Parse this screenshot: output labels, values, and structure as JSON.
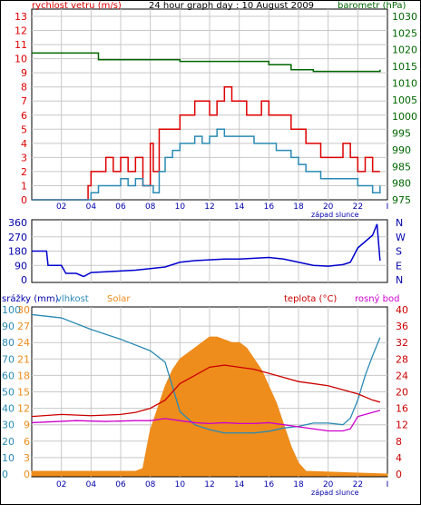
{
  "chart_data": [
    {
      "type": "line",
      "title": "24 hour graph day : 10 August 2009",
      "ylabel_left": "rychlost vetru (m/s)",
      "ylabel_right": "barometr (hPa)",
      "x_ticks": [
        "02",
        "04",
        "06",
        "08",
        "10",
        "12",
        "14",
        "16",
        "18",
        "20",
        "22",
        "I"
      ],
      "x_annotation": "západ slunce",
      "y_left_ticks": [
        0,
        1,
        2,
        3,
        4,
        5,
        6,
        7,
        8,
        9,
        10,
        11,
        12,
        13
      ],
      "y_left_range": [
        0,
        13
      ],
      "y_right_ticks": [
        975,
        980,
        985,
        990,
        995,
        1000,
        1005,
        1010,
        1015,
        1020,
        1025,
        1030
      ],
      "y_right_range": [
        975,
        1030
      ],
      "series": [
        {
          "name": "gust",
          "color": "#dd0000",
          "axis": "left",
          "hours": [
            0,
            1,
            2,
            3,
            3.8,
            4,
            4.5,
            5,
            5.5,
            6,
            6.5,
            7,
            7.5,
            8,
            8.2,
            8.6,
            9,
            9.5,
            10,
            10.5,
            11,
            11.5,
            12,
            12.5,
            13,
            13.5,
            14,
            14.5,
            15,
            15.5,
            16,
            16.5,
            17,
            17.5,
            18,
            18.5,
            19,
            19.5,
            20,
            20.5,
            21,
            21.5,
            22,
            22.5,
            23,
            23.5
          ],
          "values": [
            0,
            0,
            0,
            0,
            1,
            2,
            2,
            3,
            2,
            3,
            2,
            3,
            1,
            4,
            2,
            5,
            5,
            5,
            6,
            6,
            7,
            7,
            6,
            7,
            8,
            7,
            7,
            6,
            6,
            7,
            6,
            6,
            6,
            5,
            5,
            4,
            4,
            3,
            3,
            3,
            4,
            3,
            2,
            3,
            2,
            2
          ]
        },
        {
          "name": "average",
          "color": "#2a8ab4",
          "axis": "left",
          "hours": [
            0,
            1,
            2,
            3,
            3.8,
            4,
            4.5,
            5,
            5.5,
            6,
            6.5,
            7,
            7.5,
            8,
            8.2,
            8.6,
            9,
            9.5,
            10,
            10.5,
            11,
            11.5,
            12,
            12.5,
            13,
            13.5,
            14,
            14.5,
            15,
            15.5,
            16,
            16.5,
            17,
            17.5,
            18,
            18.5,
            19,
            19.5,
            20,
            20.5,
            21,
            21.5,
            22,
            22.5,
            23,
            23.5
          ],
          "values": [
            0,
            0,
            0,
            0,
            0,
            0.5,
            1,
            1,
            1,
            1.5,
            1,
            1.5,
            1,
            1,
            0.5,
            2,
            3,
            3.5,
            4,
            4,
            4.5,
            4,
            4.5,
            5,
            4.5,
            4.5,
            4.5,
            4.5,
            4,
            4,
            4,
            3.5,
            3.5,
            3,
            2.5,
            2,
            2,
            1.5,
            1.5,
            1.5,
            1.5,
            1.5,
            1,
            1,
            0.5,
            1
          ]
        },
        {
          "name": "barometr",
          "color": "#006600",
          "axis": "right",
          "hours": [
            0,
            4,
            4.5,
            9,
            10,
            11,
            12,
            13,
            14,
            15,
            16,
            17,
            17.5,
            18,
            19,
            20,
            21,
            22,
            23,
            23.5
          ],
          "values": [
            1019,
            1019,
            1017,
            1017,
            1016.5,
            1016.5,
            1016.5,
            1016.5,
            1016.5,
            1016.5,
            1015.5,
            1015.5,
            1014,
            1014,
            1013.5,
            1013.5,
            1013.5,
            1013.5,
            1013.5,
            1014
          ]
        }
      ]
    },
    {
      "type": "line",
      "title": "",
      "y_left_ticks": [
        0,
        90,
        180,
        270,
        360
      ],
      "y_left_range": [
        0,
        360
      ],
      "y_right_labels": [
        "N",
        "W",
        "S",
        "E",
        "N"
      ],
      "series": [
        {
          "name": "wind direction",
          "color": "#0000cc",
          "hours": [
            0,
            1,
            1.1,
            2,
            2.3,
            3,
            3.5,
            4,
            5,
            6,
            7,
            8,
            9,
            10,
            11,
            12,
            13,
            14,
            15,
            16,
            17,
            18,
            19,
            20,
            21,
            21.5,
            22,
            22.5,
            23,
            23.3,
            23.5
          ],
          "values": [
            180,
            180,
            90,
            90,
            40,
            40,
            20,
            45,
            50,
            55,
            60,
            70,
            80,
            110,
            120,
            125,
            130,
            130,
            135,
            140,
            130,
            110,
            90,
            85,
            95,
            110,
            200,
            240,
            280,
            350,
            120
          ]
        }
      ]
    },
    {
      "type": "area",
      "title": "",
      "legend": [
        "srážky (mm)",
        "vlhkost",
        "Solar",
        "teplota (°C)",
        "rosný bod"
      ],
      "x_ticks": [
        "02",
        "04",
        "06",
        "08",
        "10",
        "12",
        "14",
        "16",
        "18",
        "20",
        "22",
        "I"
      ],
      "x_annotation": "západ slunce",
      "y_left1_ticks": [
        0,
        10,
        20,
        30,
        40,
        50,
        60,
        70,
        80,
        90,
        100
      ],
      "y_left2_ticks": [
        0,
        3,
        6,
        9,
        12,
        15,
        18,
        21,
        24,
        27,
        30
      ],
      "y_right_ticks": [
        0,
        4,
        8,
        12,
        16,
        20,
        24,
        28,
        32,
        36,
        40
      ],
      "series": [
        {
          "name": "Solar",
          "color": "#ee8c1c",
          "axis": "left2",
          "hours": [
            0,
            7,
            7.5,
            8,
            8.5,
            9,
            9.5,
            10,
            10.5,
            11,
            11.5,
            12,
            12.5,
            13,
            13.5,
            14,
            14.5,
            15,
            15.5,
            16,
            16.5,
            17,
            17.5,
            18,
            18.5,
            24
          ],
          "values": [
            0.5,
            0.5,
            1,
            8,
            12,
            16,
            19,
            21,
            22,
            23,
            24,
            25,
            25,
            24.5,
            24,
            24,
            23,
            21,
            19,
            16,
            13,
            9,
            5,
            2,
            0.5,
            0
          ]
        },
        {
          "name": "vlhkost",
          "color": "#2a8ab4",
          "axis": "left1",
          "hours": [
            0,
            2,
            4,
            6,
            8,
            9,
            10,
            11,
            12,
            13,
            14,
            15,
            16,
            17,
            18,
            19,
            20,
            21,
            21.5,
            22,
            22.5,
            23,
            23.5
          ],
          "values": [
            97,
            95,
            88,
            82,
            75,
            68,
            38,
            30,
            27,
            25,
            25,
            25,
            26,
            28,
            29,
            31,
            31,
            30,
            34,
            45,
            60,
            72,
            83
          ]
        },
        {
          "name": "teplota",
          "color": "#cc0000",
          "axis": "right",
          "hours": [
            0,
            2,
            4,
            6,
            7,
            8,
            9,
            10,
            11,
            12,
            13,
            14,
            15,
            16,
            17,
            18,
            19,
            20,
            21,
            22,
            23,
            23.5
          ],
          "values": [
            14,
            14.5,
            14.2,
            14.5,
            15,
            16,
            18,
            22,
            24,
            26,
            26.5,
            26,
            25.5,
            24.5,
            23.5,
            22.5,
            22,
            21.5,
            20.5,
            19.5,
            18,
            17.5
          ]
        },
        {
          "name": "rosný bod",
          "color": "#cc00cc",
          "axis": "right",
          "hours": [
            0,
            3,
            5,
            7,
            8,
            9,
            10,
            11,
            12,
            13,
            14,
            15,
            16,
            17,
            18,
            20,
            21,
            21.5,
            22,
            23,
            23.5
          ],
          "values": [
            12.5,
            13,
            12.8,
            13,
            13,
            13.5,
            13,
            12.5,
            12.3,
            12.5,
            12.3,
            12.3,
            12.5,
            12,
            11.5,
            10.5,
            10.5,
            11,
            14,
            15,
            15.5
          ]
        }
      ]
    }
  ]
}
